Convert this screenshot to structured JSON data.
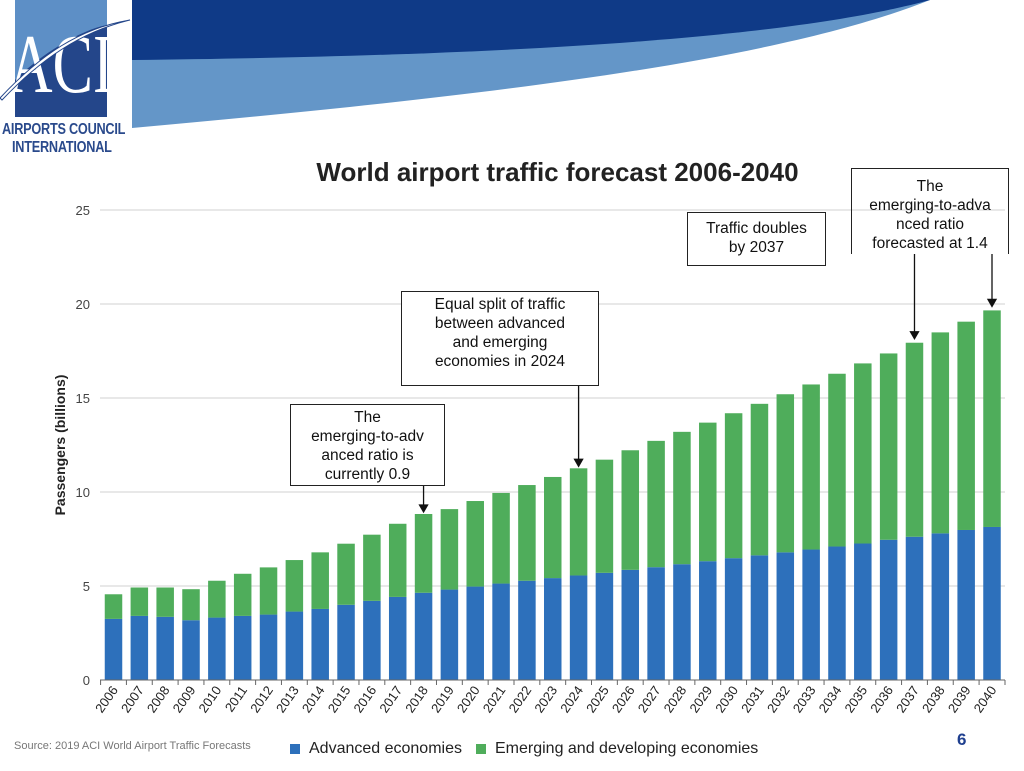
{
  "logo": {
    "letters": "ACI",
    "name_line1": "AIRPORTS COUNCIL",
    "name_line2": "INTERNATIONAL"
  },
  "source": "Source: 2019 ACI World Airport Traffic Forecasts",
  "page_number": "6",
  "colors": {
    "advanced": "#2d70bb",
    "emerging": "#4fad5b",
    "banner_dark": "#0f3a87",
    "banner_light": "#6496c8"
  },
  "annotations": [
    {
      "text": "The\nemerging-to-adv\nanced ratio is\ncurrently 0.9",
      "points_to": "2018"
    },
    {
      "text": "Equal split of traffic\nbetween advanced\nand emerging\neconomies in 2024",
      "points_to": "2024"
    },
    {
      "text": "Traffic doubles\nby 2037",
      "points_to": "2037"
    },
    {
      "text": "The\nemerging-to-adva\nnced ratio\nforecasted at 1.4",
      "points_to": "2040"
    }
  ],
  "chart_data": {
    "type": "bar",
    "stacked": true,
    "title": "World airport traffic forecast 2006-2040",
    "xlabel": "",
    "ylabel": "Passengers (billions)",
    "ylim": [
      0,
      25
    ],
    "yticks": [
      0,
      5,
      10,
      15,
      20,
      25
    ],
    "grid": true,
    "legend_position": "bottom",
    "categories": [
      "2006",
      "2007",
      "2008",
      "2009",
      "2010",
      "2011",
      "2012",
      "2013",
      "2014",
      "2015",
      "2016",
      "2017",
      "2018",
      "2019",
      "2020",
      "2021",
      "2022",
      "2023",
      "2024",
      "2025",
      "2026",
      "2027",
      "2028",
      "2029",
      "2030",
      "2031",
      "2032",
      "2033",
      "2034",
      "2035",
      "2036",
      "2037",
      "2038",
      "2039",
      "2040"
    ],
    "series": [
      {
        "name": "Advanced economies",
        "values": [
          3.25,
          3.41,
          3.36,
          3.18,
          3.32,
          3.41,
          3.48,
          3.64,
          3.78,
          4.0,
          4.21,
          4.42,
          4.64,
          4.81,
          4.97,
          5.13,
          5.28,
          5.42,
          5.56,
          5.7,
          5.86,
          6.0,
          6.16,
          6.32,
          6.48,
          6.63,
          6.79,
          6.94,
          7.1,
          7.26,
          7.46,
          7.62,
          7.8,
          7.98,
          8.14
        ]
      },
      {
        "name": "Emerging and developing economies",
        "values": [
          1.31,
          1.51,
          1.56,
          1.65,
          1.96,
          2.24,
          2.51,
          2.74,
          3.01,
          3.25,
          3.52,
          3.89,
          4.19,
          4.28,
          4.55,
          4.82,
          5.09,
          5.38,
          5.7,
          6.02,
          6.36,
          6.72,
          7.04,
          7.37,
          7.71,
          8.06,
          8.41,
          8.78,
          9.19,
          9.58,
          9.91,
          10.32,
          10.69,
          11.08,
          11.52
        ]
      }
    ]
  }
}
